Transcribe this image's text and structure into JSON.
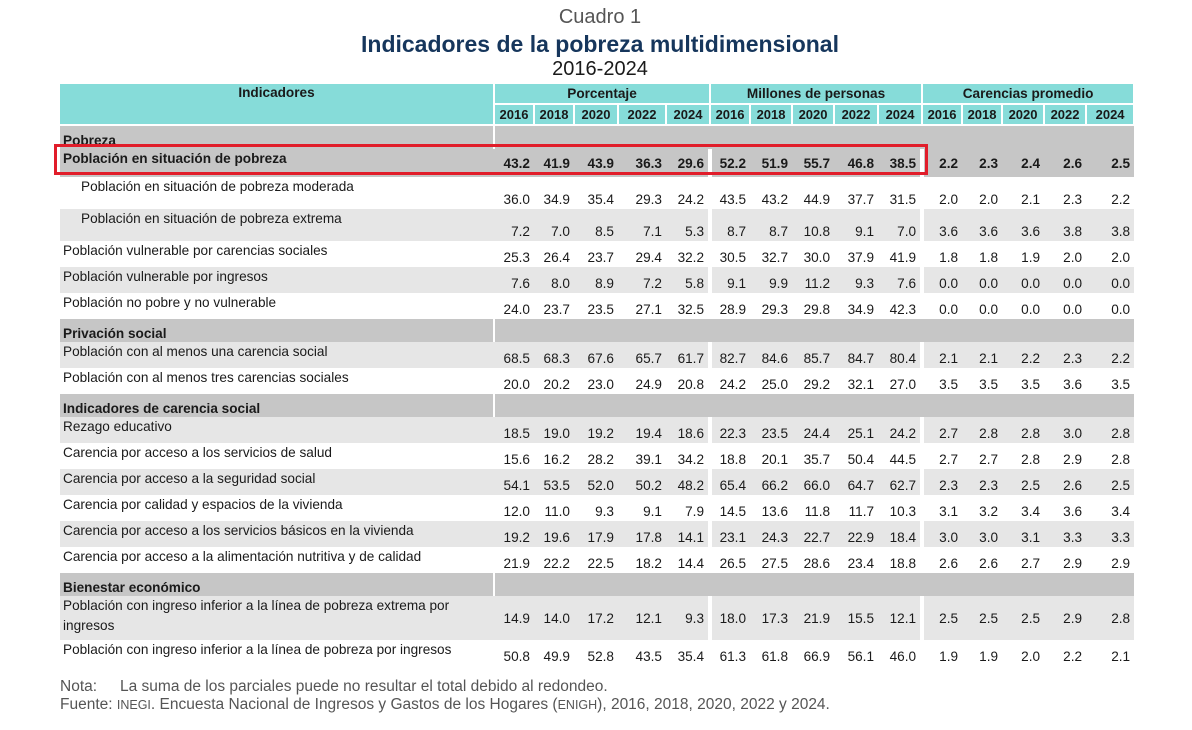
{
  "caption": {
    "label": "Cuadro 1",
    "title": "Indicadores de la pobreza multidimensional",
    "years": "2016-2024"
  },
  "header": {
    "indicators": "Indicadores",
    "groups": [
      "Porcentaje",
      "Millones de personas",
      "Carencias promedio"
    ],
    "years": [
      "2016",
      "2018",
      "2020",
      "2022",
      "2024"
    ]
  },
  "sections": [
    {
      "title": "Pobreza",
      "rows": [
        {
          "label": "Población en situación de pobreza",
          "total": true,
          "indent": false,
          "values": [
            "43.2",
            "41.9",
            "43.9",
            "36.3",
            "29.6",
            "52.2",
            "51.9",
            "55.7",
            "46.8",
            "38.5",
            "2.2",
            "2.3",
            "2.4",
            "2.6",
            "2.5"
          ]
        },
        {
          "label": "Población en situación de pobreza moderada",
          "indent": true,
          "values": [
            "36.0",
            "34.9",
            "35.4",
            "29.3",
            "24.2",
            "43.5",
            "43.2",
            "44.9",
            "37.7",
            "31.5",
            "2.0",
            "2.0",
            "2.1",
            "2.3",
            "2.2"
          ]
        },
        {
          "label": "Población en situación de pobreza extrema",
          "indent": true,
          "values": [
            "7.2",
            "7.0",
            "8.5",
            "7.1",
            "5.3",
            "8.7",
            "8.7",
            "10.8",
            "9.1",
            "7.0",
            "3.6",
            "3.6",
            "3.6",
            "3.8",
            "3.8"
          ]
        },
        {
          "label": "Población vulnerable por carencias sociales",
          "indent": false,
          "values": [
            "25.3",
            "26.4",
            "23.7",
            "29.4",
            "32.2",
            "30.5",
            "32.7",
            "30.0",
            "37.9",
            "41.9",
            "1.8",
            "1.8",
            "1.9",
            "2.0",
            "2.0"
          ]
        },
        {
          "label": "Población vulnerable por ingresos",
          "indent": false,
          "values": [
            "7.6",
            "8.0",
            "8.9",
            "7.2",
            "5.8",
            "9.1",
            "9.9",
            "11.2",
            "9.3",
            "7.6",
            "0.0",
            "0.0",
            "0.0",
            "0.0",
            "0.0"
          ]
        },
        {
          "label": "Población no pobre y no vulnerable",
          "indent": false,
          "values": [
            "24.0",
            "23.7",
            "23.5",
            "27.1",
            "32.5",
            "28.9",
            "29.3",
            "29.8",
            "34.9",
            "42.3",
            "0.0",
            "0.0",
            "0.0",
            "0.0",
            "0.0"
          ]
        }
      ]
    },
    {
      "title": "Privación social",
      "rows": [
        {
          "label": "Población con al menos una carencia social",
          "indent": false,
          "values": [
            "68.5",
            "68.3",
            "67.6",
            "65.7",
            "61.7",
            "82.7",
            "84.6",
            "85.7",
            "84.7",
            "80.4",
            "2.1",
            "2.1",
            "2.2",
            "2.3",
            "2.2"
          ]
        },
        {
          "label": "Población con al menos tres carencias sociales",
          "indent": false,
          "values": [
            "20.0",
            "20.2",
            "23.0",
            "24.9",
            "20.8",
            "24.2",
            "25.0",
            "29.2",
            "32.1",
            "27.0",
            "3.5",
            "3.5",
            "3.5",
            "3.6",
            "3.5"
          ]
        }
      ]
    },
    {
      "title": "Indicadores de carencia social",
      "rows": [
        {
          "label": "Rezago educativo",
          "indent": false,
          "values": [
            "18.5",
            "19.0",
            "19.2",
            "19.4",
            "18.6",
            "22.3",
            "23.5",
            "24.4",
            "25.1",
            "24.2",
            "2.7",
            "2.8",
            "2.8",
            "3.0",
            "2.8"
          ]
        },
        {
          "label": "Carencia por acceso a los servicios de salud",
          "indent": false,
          "values": [
            "15.6",
            "16.2",
            "28.2",
            "39.1",
            "34.2",
            "18.8",
            "20.1",
            "35.7",
            "50.4",
            "44.5",
            "2.7",
            "2.7",
            "2.8",
            "2.9",
            "2.8"
          ]
        },
        {
          "label": "Carencia por acceso a la seguridad social",
          "indent": false,
          "values": [
            "54.1",
            "53.5",
            "52.0",
            "50.2",
            "48.2",
            "65.4",
            "66.2",
            "66.0",
            "64.7",
            "62.7",
            "2.3",
            "2.3",
            "2.5",
            "2.6",
            "2.5"
          ]
        },
        {
          "label": "Carencia por calidad y espacios de la vivienda",
          "indent": false,
          "values": [
            "12.0",
            "11.0",
            "9.3",
            "9.1",
            "7.9",
            "14.5",
            "13.6",
            "11.8",
            "11.7",
            "10.3",
            "3.1",
            "3.2",
            "3.4",
            "3.6",
            "3.4"
          ]
        },
        {
          "label": "Carencia por acceso a los servicios básicos en la vivienda",
          "indent": false,
          "values": [
            "19.2",
            "19.6",
            "17.9",
            "17.8",
            "14.1",
            "23.1",
            "24.3",
            "22.7",
            "22.9",
            "18.4",
            "3.0",
            "3.0",
            "3.1",
            "3.3",
            "3.3"
          ]
        },
        {
          "label": "Carencia por acceso a la alimentación nutritiva y de calidad",
          "indent": false,
          "values": [
            "21.9",
            "22.2",
            "22.5",
            "18.2",
            "14.4",
            "26.5",
            "27.5",
            "28.6",
            "23.4",
            "18.8",
            "2.6",
            "2.6",
            "2.7",
            "2.9",
            "2.9"
          ]
        }
      ]
    },
    {
      "title": "Bienestar económico",
      "rows": [
        {
          "label": "Población con ingreso inferior a la línea de pobreza extrema por ingresos",
          "indent": false,
          "tall": true,
          "values": [
            "14.9",
            "14.0",
            "17.2",
            "12.1",
            "9.3",
            "18.0",
            "17.3",
            "21.9",
            "15.5",
            "12.1",
            "2.5",
            "2.5",
            "2.5",
            "2.9",
            "2.8"
          ]
        },
        {
          "label": "Población con ingreso inferior a la línea de pobreza por ingresos",
          "indent": false,
          "values": [
            "50.8",
            "49.9",
            "52.8",
            "43.5",
            "35.4",
            "61.3",
            "61.8",
            "66.9",
            "56.1",
            "46.0",
            "1.9",
            "1.9",
            "2.0",
            "2.2",
            "2.1"
          ]
        }
      ]
    }
  ],
  "notes": {
    "note_tag": "Nota:",
    "note_text": "La suma de los parciales puede no resultar el total debido al redondeo.",
    "source_tag": "Fuente:",
    "source_org": "INEGI",
    "source_text_1": ". Encuesta Nacional de Ingresos y Gastos de los Hogares (",
    "source_acronym": "ENIGH",
    "source_text_2": "), 2016, 2018, 2020, 2022 y 2024."
  },
  "colors": {
    "header_bg": "#86dcd9",
    "section_bg": "#c6c6c6",
    "row_shade": "#e6e6e6",
    "title_color": "#16365c",
    "highlight_border": "#e11d2a"
  }
}
